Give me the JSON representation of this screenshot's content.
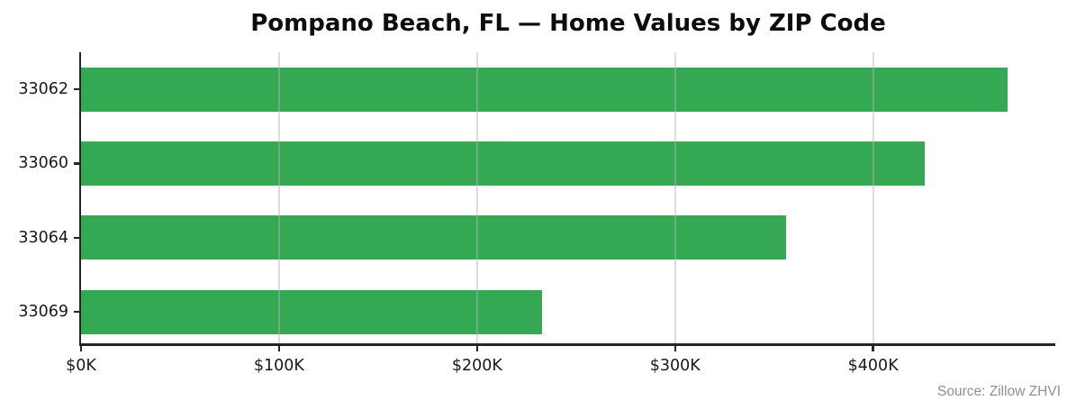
{
  "chart_data": {
    "type": "bar",
    "orientation": "horizontal",
    "title": "Pompano Beach, FL — Home Values by ZIP Code",
    "xlabel": "",
    "ylabel": "",
    "categories": [
      "33062",
      "33060",
      "33064",
      "33069"
    ],
    "values": [
      468000,
      426000,
      356000,
      233000
    ],
    "unit": "USD",
    "xlim": [
      0,
      492000
    ],
    "x_tick_values": [
      0,
      100000,
      200000,
      300000,
      400000
    ],
    "x_tick_labels": [
      "$0K",
      "$100K",
      "$200K",
      "$300K",
      "$400K"
    ],
    "grid": "vertical light-gray gridlines at x ticks",
    "legend": null
  },
  "source_note": "Source: Zillow ZHVI",
  "colors": {
    "bar": "#34a853",
    "gridline": "#e2e2e2",
    "axis": "#262626",
    "tick_label": "#1a1a1a",
    "title": "#0d0d0d",
    "source": "#8f8f8f",
    "background": "#ffffff"
  }
}
